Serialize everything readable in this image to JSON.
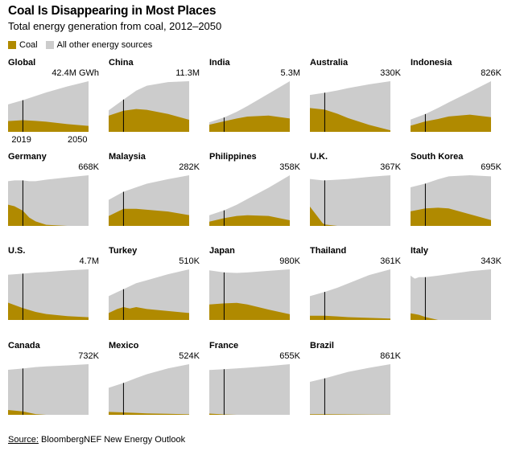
{
  "title": "Coal Is Disappearing in Most Places",
  "subtitle": "Total energy generation from coal, 2012–2050",
  "legend": [
    {
      "label": "Coal",
      "color": "#b08a00"
    },
    {
      "label": "All other energy sources",
      "color": "#cccccc"
    }
  ],
  "source": {
    "label": "Source:",
    "text": "BloombergNEF New Energy Outlook"
  },
  "colors": {
    "coal": "#b08a00",
    "other": "#cccccc",
    "marker": "#000000"
  },
  "chart_data": {
    "type": "area",
    "x_range": [
      2012,
      2050
    ],
    "marker_year": 2019,
    "x_tick_labels": [
      "2019",
      "2050"
    ],
    "series_names": [
      "Coal",
      "All other energy sources"
    ],
    "panels": [
      {
        "name": "Global",
        "total_label": "42.4M GWh",
        "max": 42.4,
        "x": [
          2012,
          2019,
          2025,
          2030,
          2040,
          2050
        ],
        "total": [
          23,
          26.5,
          30,
          33,
          38,
          42.4
        ],
        "coal": [
          9,
          9.8,
          9.2,
          8.5,
          6.5,
          5
        ]
      },
      {
        "name": "China",
        "total_label": "11.3M",
        "max": 11.3,
        "x": [
          2012,
          2019,
          2025,
          2030,
          2040,
          2050
        ],
        "total": [
          4.8,
          7.2,
          9.2,
          10.3,
          11.1,
          11.3
        ],
        "coal": [
          3.6,
          4.7,
          5.1,
          4.9,
          4,
          2.7
        ]
      },
      {
        "name": "India",
        "total_label": "5.3M",
        "max": 5.3,
        "x": [
          2012,
          2019,
          2025,
          2030,
          2040,
          2050
        ],
        "total": [
          1.0,
          1.5,
          2.1,
          2.7,
          4,
          5.3
        ],
        "coal": [
          0.75,
          1.1,
          1.4,
          1.6,
          1.7,
          1.4
        ]
      },
      {
        "name": "Australia",
        "total_label": "330K",
        "max": 330,
        "x": [
          2012,
          2019,
          2025,
          2030,
          2040,
          2050
        ],
        "total": [
          240,
          255,
          270,
          285,
          310,
          330
        ],
        "coal": [
          155,
          145,
          118,
          90,
          45,
          10
        ]
      },
      {
        "name": "Indonesia",
        "total_label": "826K",
        "max": 826,
        "x": [
          2012,
          2019,
          2025,
          2030,
          2040,
          2050
        ],
        "total": [
          200,
          290,
          390,
          480,
          650,
          826
        ],
        "coal": [
          100,
          170,
          210,
          250,
          280,
          240
        ]
      },
      {
        "name": "Germany",
        "total_label": "668K",
        "max": 668,
        "x": [
          2012,
          2015,
          2019,
          2022,
          2025,
          2030,
          2040,
          2050
        ],
        "total": [
          590,
          600,
          600,
          590,
          590,
          610,
          640,
          668
        ],
        "coal": [
          280,
          260,
          200,
          110,
          60,
          15,
          0,
          0
        ]
      },
      {
        "name": "Malaysia",
        "total_label": "282K",
        "max": 282,
        "x": [
          2012,
          2019,
          2025,
          2030,
          2040,
          2050
        ],
        "total": [
          145,
          190,
          215,
          235,
          260,
          282
        ],
        "coal": [
          55,
          95,
          95,
          90,
          80,
          60
        ]
      },
      {
        "name": "Philippines",
        "total_label": "358K",
        "max": 358,
        "x": [
          2012,
          2019,
          2025,
          2030,
          2040,
          2050
        ],
        "total": [
          75,
          110,
          150,
          190,
          270,
          358
        ],
        "coal": [
          30,
          55,
          70,
          75,
          70,
          40
        ]
      },
      {
        "name": "U.K.",
        "total_label": "367K",
        "max": 367,
        "x": [
          2012,
          2015,
          2018,
          2019,
          2025,
          2030,
          2040,
          2050
        ],
        "total": [
          340,
          335,
          330,
          330,
          335,
          340,
          355,
          367
        ],
        "coal": [
          140,
          80,
          20,
          10,
          0,
          0,
          0,
          0
        ]
      },
      {
        "name": "South Korea",
        "total_label": "695K",
        "max": 695,
        "x": [
          2012,
          2019,
          2025,
          2030,
          2040,
          2050
        ],
        "total": [
          530,
          580,
          640,
          680,
          695,
          680
        ],
        "coal": [
          200,
          240,
          250,
          240,
          160,
          80
        ]
      },
      {
        "name": "U.S.",
        "total_label": "4.7M",
        "max": 4.7,
        "x": [
          2012,
          2019,
          2025,
          2030,
          2040,
          2050
        ],
        "total": [
          4.2,
          4.3,
          4.4,
          4.45,
          4.6,
          4.7
        ],
        "coal": [
          1.6,
          1.1,
          0.75,
          0.55,
          0.35,
          0.25
        ]
      },
      {
        "name": "Turkey",
        "total_label": "510K",
        "max": 510,
        "x": [
          2012,
          2016,
          2019,
          2022,
          2025,
          2030,
          2040,
          2050
        ],
        "total": [
          240,
          280,
          310,
          340,
          370,
          400,
          460,
          510
        ],
        "coal": [
          70,
          110,
          130,
          115,
          130,
          110,
          90,
          70
        ]
      },
      {
        "name": "Japan",
        "total_label": "980K",
        "max": 980,
        "x": [
          2012,
          2019,
          2025,
          2030,
          2040,
          2050
        ],
        "total": [
          960,
          920,
          910,
          920,
          950,
          980
        ],
        "coal": [
          300,
          320,
          330,
          300,
          200,
          110
        ]
      },
      {
        "name": "Thailand",
        "total_label": "361K",
        "max": 361,
        "x": [
          2012,
          2019,
          2025,
          2030,
          2040,
          2050
        ],
        "total": [
          170,
          200,
          230,
          260,
          320,
          361
        ],
        "coal": [
          30,
          30,
          25,
          20,
          15,
          10
        ]
      },
      {
        "name": "Italy",
        "total_label": "343K",
        "max": 343,
        "x": [
          2012,
          2014,
          2016,
          2019,
          2025,
          2030,
          2040,
          2050
        ],
        "total": [
          300,
          280,
          290,
          290,
          300,
          310,
          330,
          343
        ],
        "coal": [
          45,
          40,
          35,
          20,
          0,
          0,
          0,
          0
        ]
      },
      {
        "name": "Canada",
        "total_label": "732K",
        "max": 732,
        "x": [
          2012,
          2019,
          2025,
          2030,
          2040,
          2050
        ],
        "total": [
          650,
          670,
          690,
          700,
          715,
          732
        ],
        "coal": [
          70,
          50,
          10,
          0,
          0,
          0
        ]
      },
      {
        "name": "Mexico",
        "total_label": "524K",
        "max": 524,
        "x": [
          2012,
          2019,
          2025,
          2030,
          2040,
          2050
        ],
        "total": [
          280,
          330,
          380,
          420,
          480,
          524
        ],
        "coal": [
          30,
          25,
          20,
          15,
          10,
          5
        ]
      },
      {
        "name": "France",
        "total_label": "655K",
        "max": 655,
        "x": [
          2012,
          2019,
          2025,
          2030,
          2040,
          2050
        ],
        "total": [
          580,
          590,
          600,
          610,
          630,
          655
        ],
        "coal": [
          15,
          5,
          0,
          0,
          0,
          0
        ]
      },
      {
        "name": "Brazil",
        "total_label": "861K",
        "max": 861,
        "x": [
          2012,
          2019,
          2025,
          2030,
          2040,
          2050
        ],
        "total": [
          560,
          620,
          680,
          730,
          800,
          861
        ],
        "coal": [
          10,
          10,
          8,
          6,
          4,
          2
        ]
      }
    ]
  }
}
